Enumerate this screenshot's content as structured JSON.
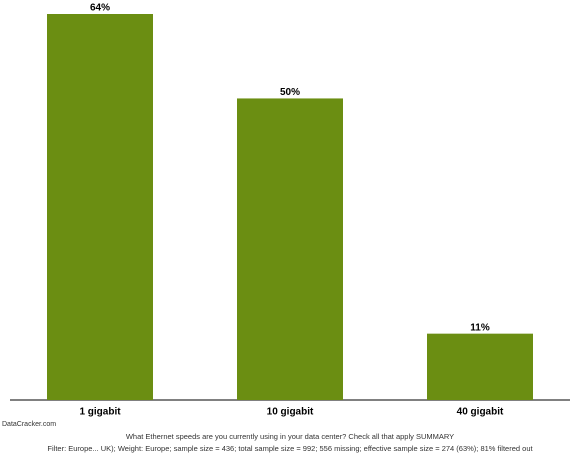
{
  "chart_data": {
    "type": "bar",
    "categories": [
      "1 gigabit",
      "10 gigabit",
      "40 gigabit"
    ],
    "values": [
      64,
      50,
      11
    ],
    "value_labels": [
      "64%",
      "50%",
      "11%"
    ],
    "color": "#6b8e12",
    "source": "DataCracker.com",
    "question": "What Ethernet speeds are you currently using in your data center? Check all that apply SUMMARY",
    "filter": "Filter: Europe... UK); Weight: Europe; sample size = 436; total sample size = 992; 556 missing; effective sample size = 274 (63%); 81% filtered out"
  }
}
